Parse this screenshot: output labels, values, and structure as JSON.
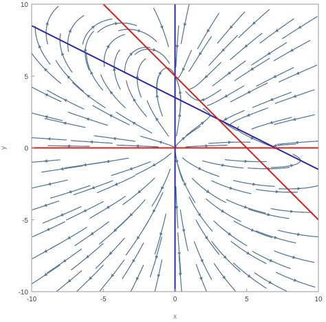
{
  "chart_data": {
    "type": "streamplot",
    "title": "",
    "xlabel": "x",
    "ylabel": "y",
    "xlim": [
      -10,
      10
    ],
    "ylim": [
      -10,
      10
    ],
    "xticks": [
      -10,
      -5,
      0,
      5,
      10
    ],
    "yticks": [
      -10,
      -5,
      0,
      5,
      10
    ],
    "xtick_labels": [
      "-10",
      "-5",
      "0",
      "5",
      "10"
    ],
    "ytick_labels": [
      "-10",
      "-5",
      "0",
      "5",
      "10"
    ],
    "grid": false,
    "colors": {
      "stream": "#5b7a9a",
      "blue_line": "#2a2aa8",
      "red_line": "#d62020",
      "frame": "#999999"
    },
    "field": {
      "description": "vector field (dx, dy) = (x*(7 - x - 2y), y*(5 - x - y))"
    },
    "lines": [
      {
        "color": "blue",
        "points": [
          [
            0,
            -10
          ],
          [
            0,
            10
          ]
        ]
      },
      {
        "color": "blue",
        "points": [
          [
            -10,
            8.5
          ],
          [
            10,
            -1.5
          ]
        ]
      },
      {
        "color": "red",
        "points": [
          [
            -10,
            0
          ],
          [
            10,
            0
          ]
        ]
      },
      {
        "color": "red",
        "points": [
          [
            -5,
            10
          ],
          [
            10,
            -5
          ]
        ]
      }
    ]
  }
}
